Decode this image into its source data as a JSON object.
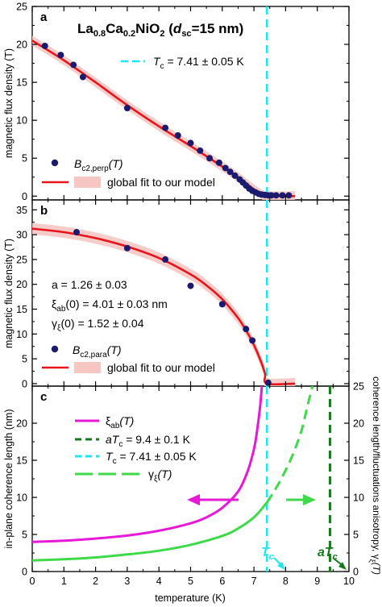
{
  "figure": {
    "title_main": "La",
    "title_sub1": "0.8",
    "title_mid": "Ca",
    "title_sub2": "0.2",
    "title_tail": "NiO",
    "title_sub3": "2",
    "title_paren": " (",
    "title_d": "d",
    "title_dsub": "sc",
    "title_end": "=15 nm)"
  },
  "colors": {
    "fit_red": "#e8141c",
    "fit_band": "#f5c6c2",
    "points": "#1a1a6e",
    "tc_cyan": "#1ee6f5",
    "xi_magenta": "#e619d6",
    "gamma_green": "#3fd94a",
    "atc_darkgreen": "#157a1b"
  },
  "chart_data": [
    {
      "panel": "a",
      "type": "scatter",
      "xlabel": "",
      "ylabel": "magnetic flux density (T)",
      "xlim": [
        0,
        10
      ],
      "ylim": [
        -0.5,
        25
      ],
      "yticks": [
        0,
        5,
        10,
        15,
        20,
        25
      ],
      "series": [
        {
          "name": "B_c2,perp(T)",
          "kind": "points",
          "x": [
            0.4,
            0.9,
            1.3,
            1.6,
            3.0,
            4.2,
            4.6,
            5.0,
            5.3,
            5.6,
            5.9,
            6.1,
            6.25,
            6.4,
            6.55,
            6.65,
            6.75,
            6.85,
            6.95,
            7.05,
            7.15,
            7.25,
            7.35,
            7.45,
            7.55,
            7.7,
            7.9,
            8.1
          ],
          "y": [
            19.8,
            18.6,
            17.3,
            15.7,
            11.6,
            9.0,
            8.0,
            7.0,
            6.0,
            5.0,
            4.4,
            3.7,
            3.2,
            2.7,
            2.2,
            1.8,
            1.4,
            1.0,
            0.7,
            0.5,
            0.3,
            0.2,
            0.15,
            0.1,
            0.1,
            0.1,
            0.1,
            0.1
          ]
        },
        {
          "name": "global fit to our model",
          "kind": "line",
          "x": [
            0,
            1,
            2,
            3,
            4,
            5,
            6,
            6.5,
            7.0,
            7.2,
            7.41,
            8.3
          ],
          "y": [
            20.5,
            17.9,
            15.0,
            12.0,
            9.2,
            6.6,
            3.9,
            2.5,
            0.9,
            0.35,
            0,
            0
          ]
        }
      ],
      "annotations": [
        "T_c = 7.41 ± 0.05 K"
      ],
      "tc": 7.41
    },
    {
      "panel": "b",
      "type": "scatter",
      "xlabel": "",
      "ylabel": "magnetic flux density (T)",
      "xlim": [
        0,
        10
      ],
      "ylim": [
        -0.5,
        37
      ],
      "yticks": [
        0,
        5,
        10,
        15,
        20,
        25,
        30,
        35
      ],
      "series": [
        {
          "name": "B_c2,para(T)",
          "kind": "points",
          "x": [
            1.4,
            3.0,
            4.2,
            5.0,
            6.0,
            6.75,
            6.95,
            7.45
          ],
          "y": [
            30.5,
            27.3,
            25.0,
            19.7,
            16.0,
            11.0,
            8.7,
            0.2
          ]
        },
        {
          "name": "global fit to our model",
          "kind": "line",
          "x": [
            0,
            1,
            2,
            3,
            4,
            5,
            5.5,
            6.0,
            6.5,
            6.8,
            7.0,
            7.2,
            7.35,
            7.41,
            8.3
          ],
          "y": [
            31.2,
            30.5,
            29.3,
            27.6,
            25.3,
            22.0,
            19.8,
            17.0,
            13.2,
            10.2,
            7.8,
            4.8,
            2.0,
            0,
            0
          ]
        }
      ],
      "annotations": [
        "a = 1.26 ± 0.03",
        "ξ_ab(0) = 4.01 ± 0.03 nm",
        "γ_ξ(0) = 1.52 ± 0.04"
      ],
      "tc": 7.41
    },
    {
      "panel": "c",
      "type": "line",
      "xlabel": "temperature (K)",
      "ylabel": "in-plane coherence length (nm)",
      "y2label": "coherence length/fluctuations anisotropy, γ_ξ(T)",
      "xlim": [
        0,
        10
      ],
      "ylim": [
        0,
        25
      ],
      "yticks": [
        0,
        5,
        10,
        15,
        20
      ],
      "y2lim": [
        0,
        25
      ],
      "y2ticks": [
        0,
        5,
        10,
        15,
        20,
        25
      ],
      "xticks": [
        0,
        1,
        2,
        3,
        4,
        5,
        6,
        7,
        8,
        9,
        10
      ],
      "series": [
        {
          "name": "ξ_ab(T)",
          "kind": "line",
          "x": [
            0,
            1,
            2,
            3,
            4,
            5,
            5.5,
            6.0,
            6.5,
            6.8,
            7.0,
            7.1,
            7.2,
            7.25
          ],
          "y": [
            4.0,
            4.15,
            4.45,
            4.85,
            5.5,
            6.5,
            7.3,
            8.6,
            10.8,
            13.5,
            16.5,
            19.0,
            22.5,
            25.0
          ]
        },
        {
          "name": "γ_ξ(T)",
          "kind": "line",
          "axis": "right",
          "x": [
            0,
            1,
            2,
            3,
            4,
            5,
            6,
            6.5,
            7.0,
            7.41,
            7.8,
            8.2,
            8.5,
            8.7,
            8.85
          ],
          "y": [
            1.5,
            1.65,
            1.9,
            2.3,
            2.8,
            3.6,
            4.8,
            5.8,
            7.3,
            9.3,
            12.0,
            15.5,
            19.0,
            22.5,
            25.0
          ]
        }
      ],
      "legend": [
        "ξ_ab(T)",
        "aT_c = 9.4 ± 0.1 K",
        "T_c = 7.41 ± 0.05 K",
        "γ_ξ(T)"
      ],
      "tc": 7.41,
      "atc": 9.4
    }
  ],
  "panels": {
    "a": {
      "letter": "a",
      "ylabel": "magnetic flux density (T)",
      "tc_label": "T",
      "tc_sub": "c",
      "tc_value": " = 7.41 ± 0.05 K",
      "legend_points_main": "B",
      "legend_points_sub": "c2,perp",
      "legend_points_tail": "(T)",
      "legend_fit": "global fit to our model"
    },
    "b": {
      "letter": "b",
      "ylabel": "magnetic flux density (T)",
      "a_line": "a = 1.26 ± 0.03",
      "xi_main": "ξ",
      "xi_sub": "ab",
      "xi_tail": "(0) = 4.01 ±  0.03 nm",
      "g_main": "γ",
      "g_sub": "ξ",
      "g_tail": "(0) = 1.52 ± 0.04",
      "legend_points_main": "B",
      "legend_points_sub": "c2,para",
      "legend_points_tail": "(T)",
      "legend_fit": "global fit to our model"
    },
    "c": {
      "letter": "c",
      "ylabel": "in-plane coherence length (nm)",
      "y2label": "coherence length/fluctuations anisotropy, γ",
      "y2label_sub": "ξ",
      "y2label_tail": "(T)",
      "xlabel": "temperature (K)",
      "leg_xi_main": "ξ",
      "leg_xi_sub": "ab",
      "leg_xi_tail": "(T)",
      "leg_atc_main": "aT",
      "leg_atc_sub": "c",
      "leg_atc_tail": " = 9.4 ± 0.1 K",
      "leg_tc_main": "T",
      "leg_tc_sub": "c",
      "leg_tc_tail": " = 7.41 ± 0.05 K",
      "leg_g_main": "γ",
      "leg_g_sub": "ξ",
      "leg_g_tail": "(T)",
      "tc_arrow_main": "T",
      "tc_arrow_sub": "c",
      "atc_arrow_main": "aT",
      "atc_arrow_sub": "c"
    }
  }
}
